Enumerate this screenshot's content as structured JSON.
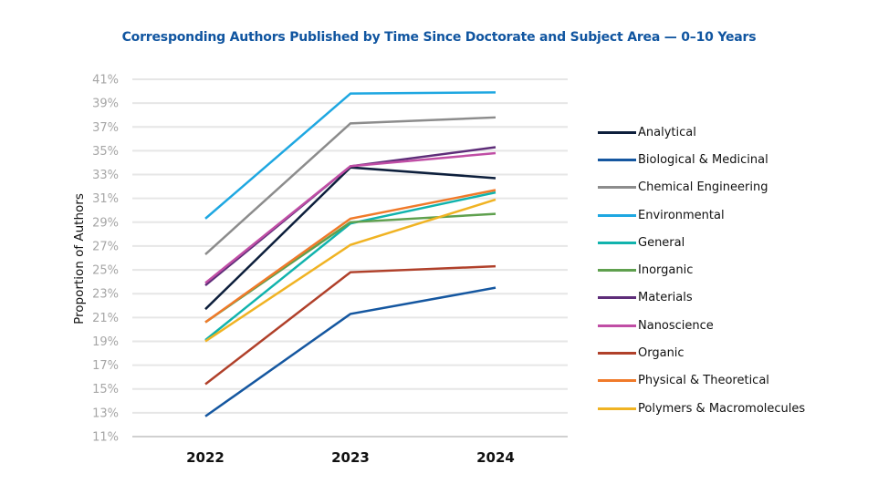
{
  "title": "Corresponding Authors Published by Time Since Doctorate and Subject Area — 0–10 Years",
  "chart_data": {
    "type": "line",
    "title": "Corresponding Authors Published by Time Since Doctorate and Subject Area — 0–10 Years",
    "xlabel": "",
    "ylabel": "Proportion of Authors",
    "categories": [
      "2022",
      "2023",
      "2024"
    ],
    "ylim": [
      11,
      41
    ],
    "yticks": [
      "11%",
      "13%",
      "15%",
      "17%",
      "19%",
      "21%",
      "23%",
      "25%",
      "27%",
      "29%",
      "31%",
      "33%",
      "35%",
      "37%",
      "39%",
      "41%"
    ],
    "grid": true,
    "legend_position": "right",
    "series": [
      {
        "name": "Analytical",
        "color": "#0d1f3c",
        "values": [
          21.7,
          33.6,
          32.7
        ]
      },
      {
        "name": "Biological & Medicinal",
        "color": "#1557a0",
        "values": [
          12.7,
          21.3,
          23.5
        ]
      },
      {
        "name": "Chemical Engineering",
        "color": "#8c8c8c",
        "values": [
          26.3,
          37.3,
          37.8
        ]
      },
      {
        "name": "Environmental",
        "color": "#1ea7e1",
        "values": [
          29.3,
          39.8,
          39.9
        ]
      },
      {
        "name": "General",
        "color": "#11b3ad",
        "values": [
          19.1,
          28.9,
          31.5
        ]
      },
      {
        "name": "Inorganic",
        "color": "#5fa04e",
        "values": [
          20.6,
          29.0,
          29.7
        ]
      },
      {
        "name": "Materials",
        "color": "#5e2d79",
        "values": [
          23.7,
          33.7,
          35.3
        ]
      },
      {
        "name": "Nanoscience",
        "color": "#c04ea5",
        "values": [
          23.9,
          33.7,
          34.8
        ]
      },
      {
        "name": "Organic",
        "color": "#b0402a",
        "values": [
          15.4,
          24.8,
          25.3
        ]
      },
      {
        "name": "Physical & Theoretical",
        "color": "#f07a2a",
        "values": [
          20.6,
          29.3,
          31.7
        ]
      },
      {
        "name": "Polymers & Macromolecules",
        "color": "#f0b323",
        "values": [
          19.0,
          27.1,
          30.9
        ]
      }
    ]
  }
}
